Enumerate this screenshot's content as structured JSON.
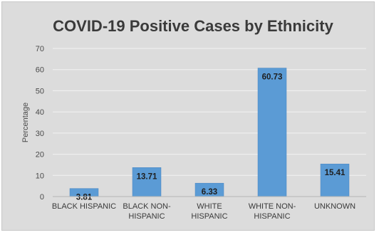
{
  "chart_data": {
    "type": "bar",
    "title": "COVID-19 Positive Cases by Ethnicity",
    "ylabel": "Percentage",
    "xlabel": "",
    "ylim": [
      0,
      70
    ],
    "yticks": [
      0,
      10,
      20,
      30,
      40,
      50,
      60,
      70
    ],
    "categories": [
      [
        "BLACK HISPANIC"
      ],
      [
        "BLACK NON-",
        "HISPANIC"
      ],
      [
        "WHITE",
        "HISPANIC"
      ],
      [
        "WHITE NON-",
        "HISPANIC"
      ],
      [
        "UNKNOWN"
      ]
    ],
    "values": [
      3.81,
      13.71,
      6.33,
      60.73,
      15.41
    ],
    "data_labels": [
      "3.81",
      "13.71",
      "6.33",
      "60.73",
      "15.41"
    ],
    "grid": true,
    "colors": {
      "bar": "#5b9bd5",
      "background": "#dcdcdc",
      "grid": "#f2f2f2"
    }
  }
}
